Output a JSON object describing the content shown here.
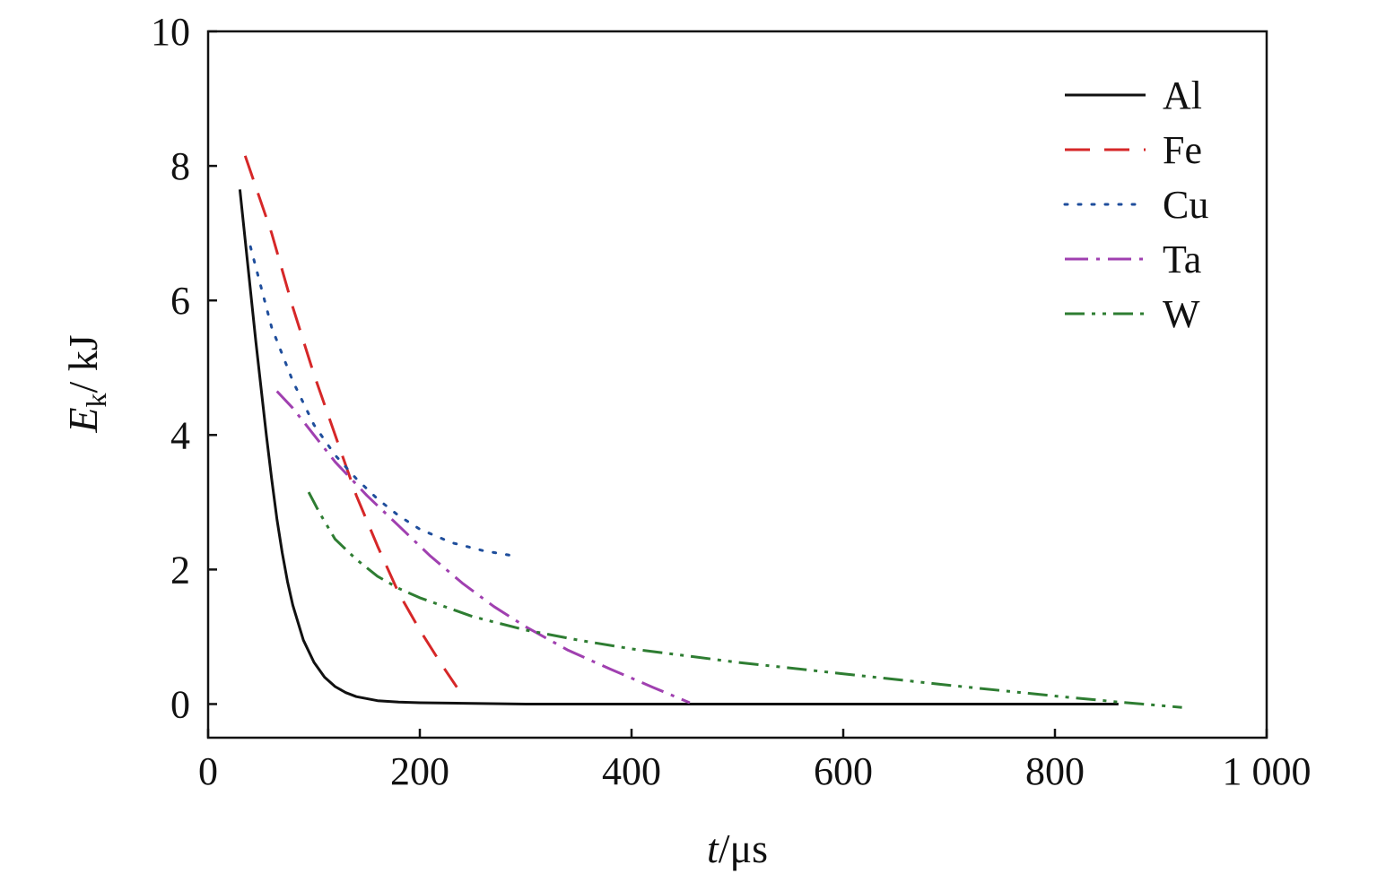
{
  "chart_data": {
    "type": "line",
    "xlabel": {
      "var": "t",
      "unit": "/μs"
    },
    "ylabel": {
      "var": "E",
      "sub": "k",
      "unit": "/ kJ"
    },
    "xlim": [
      0,
      1000
    ],
    "ylim": [
      -0.5,
      10
    ],
    "xticks": [
      0,
      200,
      400,
      600,
      800,
      1000
    ],
    "xtick_labels": [
      "0",
      "200",
      "400",
      "600",
      "800",
      "1 000"
    ],
    "yticks": [
      0,
      2,
      4,
      6,
      8,
      10
    ],
    "ytick_labels": [
      "0",
      "2",
      "4",
      "6",
      "8",
      "10"
    ],
    "grid": false,
    "legend_position": "top-right",
    "series": [
      {
        "name": "Al",
        "color": "#111111",
        "dash": "solid",
        "x": [
          30,
          35,
          40,
          45,
          50,
          55,
          60,
          65,
          70,
          75,
          80,
          90,
          100,
          110,
          120,
          130,
          140,
          160,
          180,
          200,
          250,
          300,
          400,
          500,
          600,
          700,
          860
        ],
        "y": [
          7.65,
          6.9,
          6.15,
          5.4,
          4.7,
          4.0,
          3.35,
          2.75,
          2.25,
          1.82,
          1.47,
          0.95,
          0.62,
          0.4,
          0.26,
          0.17,
          0.11,
          0.05,
          0.03,
          0.02,
          0.01,
          0.0,
          0.0,
          0.0,
          0.0,
          0.0,
          0.0
        ]
      },
      {
        "name": "Fe",
        "color": "#d62728",
        "dash": "long-dash",
        "x": [
          35,
          60,
          80,
          100,
          120,
          140,
          160,
          180,
          200,
          220,
          235
        ],
        "y": [
          8.15,
          7.0,
          5.9,
          4.9,
          4.0,
          3.1,
          2.35,
          1.65,
          1.1,
          0.6,
          0.25
        ]
      },
      {
        "name": "Cu",
        "color": "#1f4e9c",
        "dash": "dotted",
        "x": [
          40,
          50,
          60,
          80,
          100,
          120,
          140,
          160,
          180,
          200,
          230,
          260,
          290
        ],
        "y": [
          6.8,
          6.2,
          5.6,
          4.8,
          4.15,
          3.7,
          3.35,
          3.05,
          2.8,
          2.6,
          2.4,
          2.28,
          2.2
        ]
      },
      {
        "name": "Ta",
        "color": "#a040b0",
        "dash": "dash-dot",
        "x": [
          65,
          80,
          100,
          120,
          150,
          180,
          210,
          240,
          270,
          300,
          340,
          380,
          420,
          455
        ],
        "y": [
          4.65,
          4.4,
          4.0,
          3.6,
          3.1,
          2.65,
          2.2,
          1.8,
          1.45,
          1.15,
          0.8,
          0.52,
          0.25,
          0.02
        ]
      },
      {
        "name": "W",
        "color": "#2e7d32",
        "dash": "dash-dot-dot",
        "x": [
          95,
          105,
          120,
          140,
          160,
          180,
          200,
          250,
          300,
          350,
          400,
          500,
          600,
          700,
          800,
          860,
          920
        ],
        "y": [
          3.15,
          2.85,
          2.45,
          2.15,
          1.9,
          1.72,
          1.58,
          1.3,
          1.1,
          0.95,
          0.82,
          0.62,
          0.45,
          0.28,
          0.12,
          0.03,
          -0.05
        ]
      }
    ]
  }
}
